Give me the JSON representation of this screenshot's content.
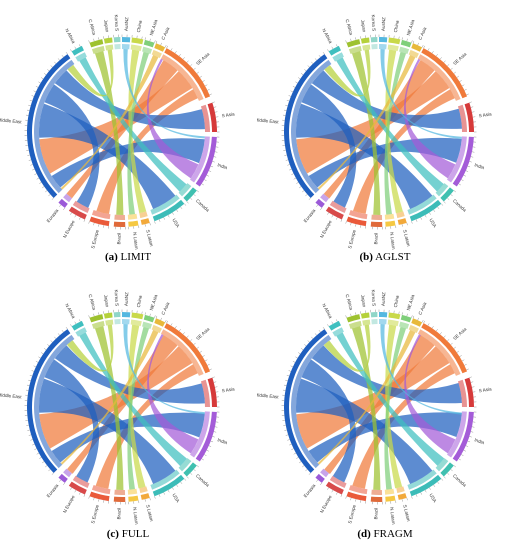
{
  "regions": [
    "N Africa",
    "C Africa",
    "Japan",
    "Korea S",
    "AusNZ",
    "China",
    "NE Asia",
    "C Asia",
    "SE Asia",
    "S Asia",
    "India",
    "Canada",
    "USA",
    "S Latam",
    "N Latam",
    "Brazil",
    "S Europe",
    "N Europe",
    "Eurasia",
    "Middle East"
  ],
  "palette": {
    "N Africa": "#3fbfbf",
    "C Africa": "#9ec22f",
    "Japan": "#b5d13b",
    "Korea S": "#8fd6c8",
    "AusNZ": "#55b8e0",
    "China": "#c9d94a",
    "NE Asia": "#7fcf7a",
    "C Asia": "#e8b93b",
    "SE Asia": "#f07a3a",
    "S Asia": "#d63a3a",
    "India": "#a45cd8",
    "Canada": "#40c0b0",
    "USA": "#3cbcb8",
    "S Latam": "#f2a93b",
    "N Latam": "#f5c842",
    "Brazil": "#e06a3a",
    "S Europe": "#ea5a3a",
    "N Europe": "#d84a4a",
    "Eurasia": "#9b5ad8",
    "Middle East": "#1f5fbf"
  },
  "panels": [
    {
      "tag": "(a)",
      "name": "LIMIT"
    },
    {
      "tag": "(b)",
      "name": "AGLST"
    },
    {
      "tag": "(c)",
      "name": "FULL"
    },
    {
      "tag": "(d)",
      "name": "FRAGM"
    }
  ]
}
